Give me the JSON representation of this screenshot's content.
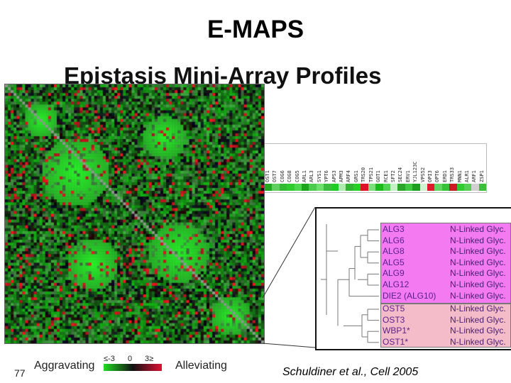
{
  "slide": {
    "title": "E-MAPS",
    "subtitle": "Epistasis Mini-Array Profiles",
    "page_number": "77",
    "legend_left": "Aggravating",
    "legend_right": "Alleviating",
    "scale_ticks": [
      "-3",
      "0",
      "3"
    ],
    "scale_prefix": "≤",
    "scale_suffix": "≥",
    "citation_author": "Schuldiner ",
    "citation_etal": "et al.",
    "citation_rest": ", Cell 2005"
  },
  "strip": {
    "labels": [
      "OST1",
      "OST7",
      "COG6",
      "COG8",
      "COG5",
      "ARL1",
      "ARL3",
      "SYS1",
      "YPT6",
      "APS3",
      "APM3",
      "ARF4",
      "GRS1",
      "TRS20",
      "TPS21",
      "GOT1",
      "RCE1",
      "SFT2",
      "SEC24",
      "ERV1",
      "YJL123C",
      "VPS52",
      "OPI3",
      "OPT6",
      "ERD1",
      "TRS33",
      "MNN1",
      "ALR1",
      "ARF1",
      "ZSP1"
    ],
    "colors": [
      "#22aa22",
      "#5fd05f",
      "#33bb33",
      "#2ecc2e",
      "#4fd84f",
      "#1aa51a",
      "#4ccc4c",
      "#6ee06e",
      "#3dbd3d",
      "#22cc22",
      "#b0ecb0",
      "#33b533",
      "#28d028",
      "#e0102a",
      "#7cde7c",
      "#1bbb1b",
      "#52d252",
      "#c6f0c6",
      "#2aa52a",
      "#40c840",
      "#1f9f1f",
      "#d0f4d0",
      "#e11a2e",
      "#62d662",
      "#36c236",
      "#cc1a24",
      "#2ecc2e",
      "#55d055",
      "#cfd0cf",
      "#3cc03c"
    ]
  },
  "zoom_panel": {
    "group1": [
      {
        "gene": "ALG3",
        "function": "N-Linked Glyc."
      },
      {
        "gene": "ALG6",
        "function": "N-Linked Glyc."
      },
      {
        "gene": "ALG8",
        "function": "N-Linked Glyc."
      },
      {
        "gene": "ALG5",
        "function": "N-Linked Glyc."
      },
      {
        "gene": "ALG9",
        "function": "N-Linked Glyc."
      },
      {
        "gene": "ALG12",
        "function": "N-Linked Glyc."
      },
      {
        "gene": "DIE2 (ALG10)",
        "function": "N-Linked Glyc."
      }
    ],
    "group2": [
      {
        "gene": "OST5",
        "function": "N-Linked Glyc."
      },
      {
        "gene": "OST3",
        "function": "N-Linked Glyc."
      },
      {
        "gene": "WBP1*",
        "function": "N-Linked Glyc."
      },
      {
        "gene": "OST1*",
        "function": "N-Linked Glyc."
      }
    ]
  },
  "colors": {
    "aggravating": "#22dd22",
    "alleviating": "#dd1133",
    "group1_bg": "#f47af2",
    "group2_bg": "#f4bcc8"
  }
}
